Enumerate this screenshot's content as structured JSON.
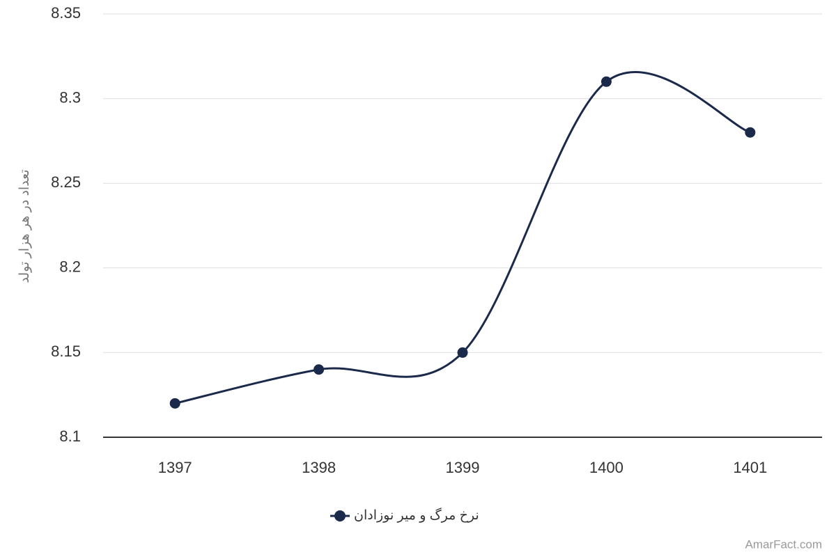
{
  "chart_data": {
    "type": "line",
    "y_label": "تعداد در هر هزار تولد",
    "categories": [
      "1397",
      "1398",
      "1399",
      "1400",
      "1401"
    ],
    "series": [
      {
        "name": "نرخ مرگ و میر نوزادان",
        "color": "#1b2a4a",
        "values": [
          8.12,
          8.14,
          8.15,
          8.31,
          8.28
        ]
      }
    ],
    "ylim": [
      8.1,
      8.35
    ],
    "yticks": [
      8.1,
      8.15,
      8.2,
      8.25,
      8.3,
      8.35
    ],
    "grid": true,
    "smooth": true,
    "credit": "AmarFact.com"
  }
}
